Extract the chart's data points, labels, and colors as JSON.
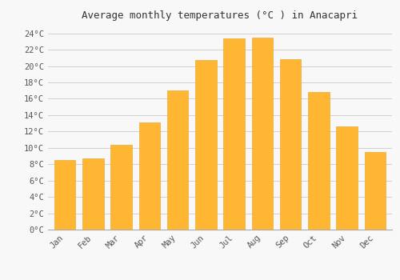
{
  "title": "Average monthly temperatures (°C ) in Anacapri",
  "months": [
    "Jan",
    "Feb",
    "Mar",
    "Apr",
    "May",
    "Jun",
    "Jul",
    "Aug",
    "Sep",
    "Oct",
    "Nov",
    "Dec"
  ],
  "values": [
    8.5,
    8.7,
    10.4,
    13.1,
    17.0,
    20.7,
    23.4,
    23.5,
    20.8,
    16.8,
    12.6,
    9.5
  ],
  "bar_color_top": "#FFB733",
  "bar_color_bottom": "#FF8C00",
  "bar_edge_color": "#E8A020",
  "background_color": "#f8f8f8",
  "grid_color": "#d0d0d0",
  "ylim": [
    0,
    25
  ],
  "yticks": [
    0,
    2,
    4,
    6,
    8,
    10,
    12,
    14,
    16,
    18,
    20,
    22,
    24
  ],
  "ytick_labels": [
    "0°C",
    "2°C",
    "4°C",
    "6°C",
    "8°C",
    "10°C",
    "12°C",
    "14°C",
    "16°C",
    "18°C",
    "20°C",
    "22°C",
    "24°C"
  ],
  "title_fontsize": 9,
  "tick_fontsize": 7.5,
  "font_family": "monospace"
}
